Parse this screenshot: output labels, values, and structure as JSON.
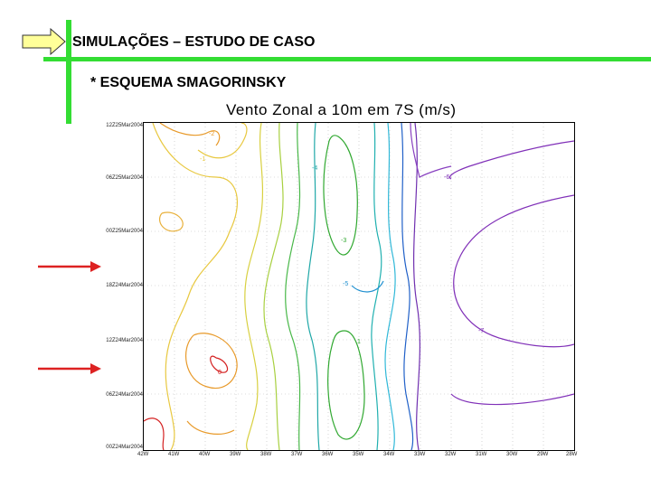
{
  "slide": {
    "title": "SIMULAÇÕES – ESTUDO DE CASO",
    "subtitle": "* ESQUEMA SMAGORINSKY"
  },
  "figure": {
    "title": "Vento Zonal a 10m em 7S (m/s)",
    "y_labels": [
      "12Z25Mar2004",
      "06Z25Mar2004",
      "00Z25Mar2004",
      "18Z24Mar2004",
      "12Z24Mar2004",
      "06Z24Mar2004",
      "00Z24Mar2004"
    ],
    "x_labels": [
      "42W",
      "41W",
      "40W",
      "39W",
      "38W",
      "37W",
      "36W",
      "35W",
      "34W",
      "33W",
      "32W",
      "31W",
      "30W",
      "29W",
      "28W"
    ],
    "contour_labels": [
      "-2",
      "-1",
      "-4",
      "-5",
      "-3",
      "-6",
      "-7",
      "0",
      "1"
    ]
  },
  "colors": {
    "accent_bar": "#33dd33",
    "arrow_fill": "#ffff99",
    "red_arrow": "#dd2222"
  }
}
